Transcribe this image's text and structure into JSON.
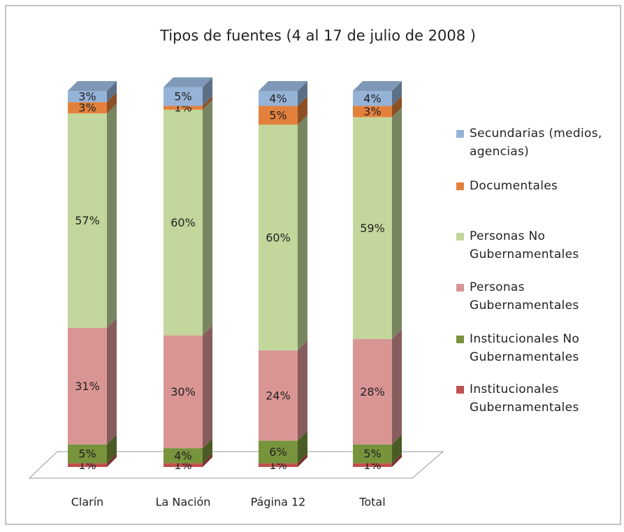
{
  "chart_data": {
    "type": "bar",
    "stacked": true,
    "title": "Tipos de fuentes (4 al 17 de julio de 2008 )",
    "categories": [
      "Clarín",
      "La Nación",
      "Página 12",
      "Total"
    ],
    "series": [
      {
        "name": "Institucionales Gubernamentales",
        "color": "#c0504d",
        "values": [
          1,
          1,
          1,
          1
        ],
        "value_labels": [
          "1%",
          "1%",
          "1%",
          "1%"
        ]
      },
      {
        "name": "Institucionales No Gubernamentales",
        "color": "#77933c",
        "values": [
          5,
          4,
          6,
          5
        ],
        "value_labels": [
          "5%",
          "4%",
          "6%",
          "5%"
        ]
      },
      {
        "name": "Personas Gubernamentales",
        "color": "#d99594",
        "values": [
          31,
          30,
          24,
          28
        ],
        "value_labels": [
          "31%",
          "30%",
          "24%",
          "28%"
        ]
      },
      {
        "name": "Personas No Gubernamentales",
        "color": "#c3d69b",
        "values": [
          57,
          60,
          60,
          59
        ],
        "value_labels": [
          "57%",
          "60%",
          "60%",
          "59%"
        ]
      },
      {
        "name": "Documentales",
        "color": "#e3813c",
        "values": [
          3,
          1,
          5,
          3
        ],
        "value_labels": [
          "3%",
          "1%",
          "5%",
          "3%"
        ]
      },
      {
        "name": "Secundarias (medios, agencias)",
        "color": "#95b3d7",
        "values": [
          3,
          5,
          4,
          4
        ],
        "value_labels": [
          "3%",
          "5%",
          "4%",
          "4%"
        ]
      }
    ],
    "legend": "right"
  }
}
